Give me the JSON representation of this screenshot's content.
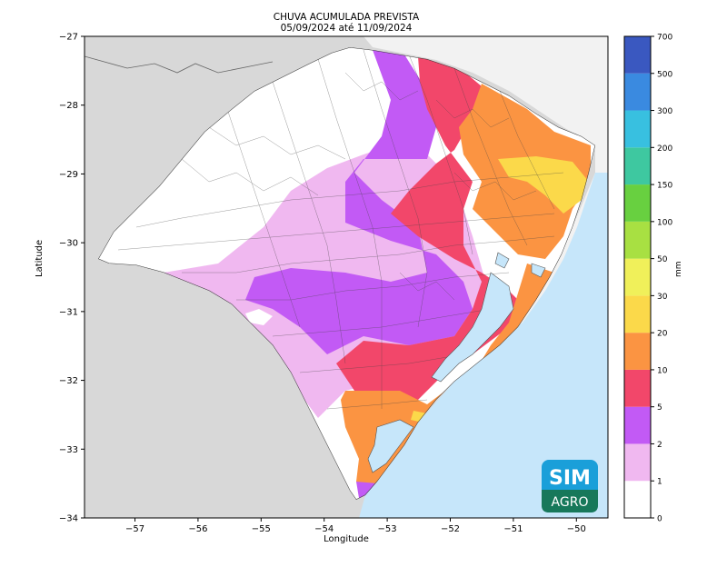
{
  "title": {
    "line1": "CHUVA ACUMULADA PREVISTA",
    "line2": "05/09/2024 até 11/09/2024"
  },
  "xaxis": {
    "label": "Longitude",
    "ticks": [
      "-57",
      "-56",
      "-55",
      "-54",
      "-53",
      "-52",
      "-51",
      "-50"
    ],
    "range": [
      -57.8,
      -49.5
    ]
  },
  "yaxis": {
    "label": "Latitude",
    "ticks": [
      "-27",
      "-28",
      "-29",
      "-30",
      "-31",
      "-32",
      "-33",
      "-34"
    ],
    "range": [
      -34,
      -27
    ]
  },
  "colorbar": {
    "unit": "mm",
    "levels": [
      "0",
      "1",
      "2",
      "5",
      "10",
      "20",
      "30",
      "50",
      "100",
      "150",
      "200",
      "300",
      "500",
      "700"
    ],
    "colors": [
      "#ffffff",
      "#f0b8f0",
      "#c25af5",
      "#f2476a",
      "#fb9442",
      "#fbd94a",
      "#f0f05a",
      "#a8e042",
      "#68d040",
      "#3ec8a0",
      "#38c0e0",
      "#3a8ae0",
      "#3a58c0",
      "#3a2ea0"
    ]
  },
  "colors": {
    "land_other": "#d8d8d8",
    "ocean": "#c6e6fa",
    "background_top": "#f0f0f0"
  },
  "logo": {
    "line1": "SIM",
    "line2": "AGRO"
  }
}
